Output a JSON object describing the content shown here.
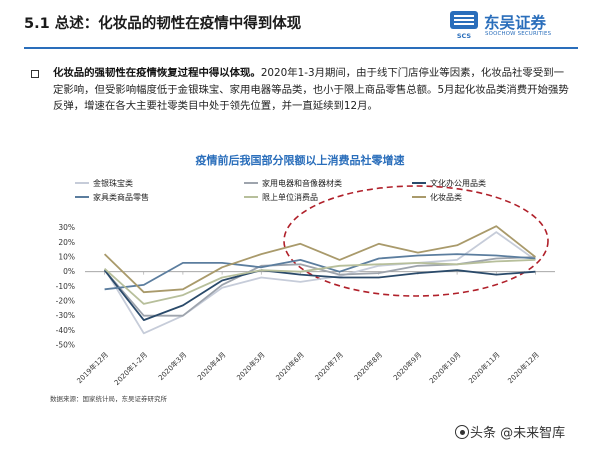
{
  "header": {
    "title": "5.1 总述：化妆品的韧性在疫情中得到体现",
    "logo_cn": "东吴证券",
    "logo_en": "SOOCHOW SECURITIES",
    "logo_mark_text": "SCS"
  },
  "summary": {
    "bold": "化妆品的强韧性在疫情恢复过程中得以体现。",
    "text": "2020年1-3月期间，由于线下门店停业等因素，化妆品社零受到一定影响，但受影响幅度低于金银珠宝、家用电器等品类，也小于限上商品零售总额。5月起化妆品类消费开始强势反弹，增速在各大主要社零类目中处于领先位置，并一直延续到12月。"
  },
  "source": "数据来源：国家统计局，东吴证券研究所",
  "watermark": "头条 @未来智库",
  "colors": {
    "brand": "#2a6ebb",
    "ellipse": "#b0202a"
  },
  "chart_data": {
    "type": "line",
    "title": "疫情前后我国部分限额以上消费品社零增速",
    "categories": [
      "2019年12月",
      "2020年1-2月",
      "2020年3月",
      "2020年4月",
      "2020年5月",
      "2020年6月",
      "2020年7月",
      "2020年8月",
      "2020年9月",
      "2020年10月",
      "2020年11月",
      "2020年12月"
    ],
    "ylim": [
      -50,
      40
    ],
    "yticks": [
      "-50%",
      "-40%",
      "-30%",
      "-20%",
      "-10%",
      "0%",
      "10%",
      "20%",
      "30%"
    ],
    "ytick_values": [
      -50,
      -40,
      -30,
      -20,
      -10,
      0,
      10,
      20,
      30
    ],
    "grid": false,
    "legend_position": "top",
    "series": [
      {
        "name": "金银珠宝类",
        "color": "#c6ccd9",
        "values": [
          2,
          -42,
          -30,
          -11,
          -4,
          -7,
          -3,
          4,
          6,
          8,
          27,
          8
        ]
      },
      {
        "name": "家用电器和音像器材类",
        "color": "#9ea4ad",
        "values": [
          1,
          -30,
          -30,
          -9,
          4,
          5,
          -2,
          -1,
          4,
          5,
          9,
          10
        ]
      },
      {
        "name": "文化办公用品类",
        "color": "#2a4a6a",
        "values": [
          1,
          -33,
          -23,
          -6,
          1,
          -2,
          -4,
          -4,
          -1,
          1,
          -2,
          0
        ]
      },
      {
        "name": "家具类商品零售",
        "color": "#5b7d9e",
        "values": [
          -12,
          -9,
          6,
          6,
          3,
          8,
          0,
          9,
          11,
          12,
          11,
          9
        ]
      },
      {
        "name": "限上单位消费品",
        "color": "#b7bf9b",
        "values": [
          2,
          -22,
          -16,
          -4,
          1,
          0,
          4,
          5,
          6,
          5,
          7,
          8
        ]
      },
      {
        "name": "化妆品类",
        "color": "#a99a6b",
        "values": [
          12,
          -14,
          -12,
          3,
          12,
          19,
          8,
          19,
          13,
          18,
          31,
          10
        ]
      }
    ]
  }
}
